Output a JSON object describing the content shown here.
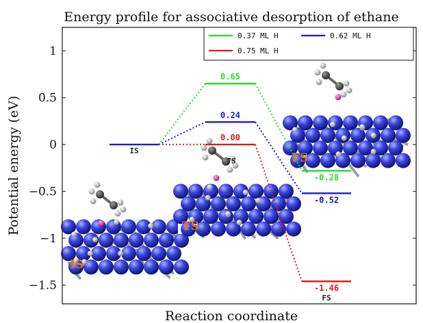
{
  "chart_data": {
    "type": "line",
    "title": "Energy profile for associative desorption of ethane",
    "xlabel": "Reaction coordinate",
    "ylabel": "Potential energy (eV)",
    "ylim": [
      -1.7,
      1.25
    ],
    "yticks": [
      1,
      0.5,
      0,
      -0.5,
      -1,
      -1.5
    ],
    "ytick_labels": [
      "1",
      "0.5",
      "0",
      "−0.5",
      "−1",
      "−1.5"
    ],
    "x": [
      "IS",
      "TS",
      "FS"
    ],
    "state_labels": {
      "IS": "IS",
      "TS": "TS",
      "FS": "FS"
    },
    "legend_position": "top-right",
    "series": [
      {
        "name": "0.37 ML H",
        "color": "#22dd22",
        "values": [
          0,
          0.65,
          -0.28
        ],
        "value_labels": [
          "",
          "0.65",
          "-0.28"
        ]
      },
      {
        "name": "0.62 ML H",
        "color": "#1a1acc",
        "values": [
          0,
          0.24,
          -0.52
        ],
        "value_labels": [
          "",
          "0.24",
          "-0.52"
        ]
      },
      {
        "name": "0.75 ML H",
        "color": "#dd1a1a",
        "values": [
          0,
          0.0,
          -1.46
        ],
        "value_labels": [
          "",
          "0.00",
          "-1.46"
        ]
      }
    ],
    "inset_labels": [
      "IS",
      "TS",
      "FS"
    ]
  }
}
